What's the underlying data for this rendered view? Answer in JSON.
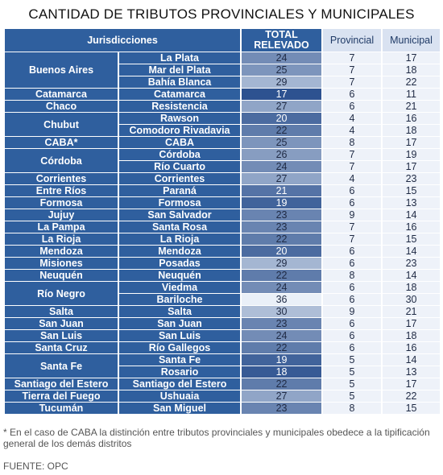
{
  "title": "CANTIDAD DE TRIBUTOS PROVINCIALES Y MUNICIPALES",
  "headers": {
    "jurisdicciones": "Jurisdicciones",
    "total": "TOTAL RELEVADO",
    "provincial": "Provincial",
    "municipal": "Municipal"
  },
  "rows": [
    {
      "province": "Buenos Aires",
      "span": 3,
      "city": "La Plata",
      "total": 24,
      "provincial": 7,
      "municipal": 17
    },
    {
      "city": "Mar del Plata",
      "total": 25,
      "provincial": 7,
      "municipal": 18
    },
    {
      "city": "Bahía Blanca",
      "total": 29,
      "provincial": 7,
      "municipal": 22
    },
    {
      "province": "Catamarca",
      "span": 1,
      "city": "Catamarca",
      "total": 17,
      "provincial": 6,
      "municipal": 11
    },
    {
      "province": "Chaco",
      "span": 1,
      "city": "Resistencia",
      "total": 27,
      "provincial": 6,
      "municipal": 21
    },
    {
      "province": "Chubut",
      "span": 2,
      "city": "Rawson",
      "total": 20,
      "provincial": 4,
      "municipal": 16
    },
    {
      "city": "Comodoro Rivadavia",
      "total": 22,
      "provincial": 4,
      "municipal": 18
    },
    {
      "province": "CABA*",
      "span": 1,
      "city": "CABA",
      "total": 25,
      "provincial": 8,
      "municipal": 17
    },
    {
      "province": "Córdoba",
      "span": 2,
      "city": "Córdoba",
      "total": 26,
      "provincial": 7,
      "municipal": 19
    },
    {
      "city": "Río Cuarto",
      "total": 24,
      "provincial": 7,
      "municipal": 17
    },
    {
      "province": "Corrientes",
      "span": 1,
      "city": "Corrientes",
      "total": 27,
      "provincial": 4,
      "municipal": 23
    },
    {
      "province": "Entre Ríos",
      "span": 1,
      "city": "Paraná",
      "total": 21,
      "provincial": 6,
      "municipal": 15
    },
    {
      "province": "Formosa",
      "span": 1,
      "city": "Formosa",
      "total": 19,
      "provincial": 6,
      "municipal": 13
    },
    {
      "province": "Jujuy",
      "span": 1,
      "city": "San Salvador",
      "total": 23,
      "provincial": 9,
      "municipal": 14
    },
    {
      "province": "La Pampa",
      "span": 1,
      "city": "Santa Rosa",
      "total": 23,
      "provincial": 7,
      "municipal": 16
    },
    {
      "province": "La Rioja",
      "span": 1,
      "city": "La Rioja",
      "total": 22,
      "provincial": 7,
      "municipal": 15
    },
    {
      "province": "Mendoza",
      "span": 1,
      "city": "Mendoza",
      "total": 20,
      "provincial": 6,
      "municipal": 14
    },
    {
      "province": "Misiones",
      "span": 1,
      "city": "Posadas",
      "total": 29,
      "provincial": 6,
      "municipal": 23
    },
    {
      "province": "Neuquén",
      "span": 1,
      "city": "Neuquén",
      "total": 22,
      "provincial": 8,
      "municipal": 14
    },
    {
      "province": "Río Negro",
      "span": 2,
      "city": "Viedma",
      "total": 24,
      "provincial": 6,
      "municipal": 18
    },
    {
      "city": "Bariloche",
      "total": 36,
      "provincial": 6,
      "municipal": 30
    },
    {
      "province": "Salta",
      "span": 1,
      "city": "Salta",
      "total": 30,
      "provincial": 9,
      "municipal": 21
    },
    {
      "province": "San Juan",
      "span": 1,
      "city": "San Juan",
      "total": 23,
      "provincial": 6,
      "municipal": 17
    },
    {
      "province": "San Luis",
      "span": 1,
      "city": "San Luis",
      "total": 24,
      "provincial": 6,
      "municipal": 18
    },
    {
      "province": "Santa Cruz",
      "span": 1,
      "city": "Río Gallegos",
      "total": 22,
      "provincial": 6,
      "municipal": 16
    },
    {
      "province": "Santa Fe",
      "span": 2,
      "city": "Santa Fe",
      "total": 19,
      "provincial": 5,
      "municipal": 14
    },
    {
      "city": "Rosario",
      "total": 18,
      "provincial": 5,
      "municipal": 13
    },
    {
      "province": "Santiago del Estero",
      "span": 1,
      "city": "Santiago del Estero",
      "total": 22,
      "provincial": 5,
      "municipal": 17
    },
    {
      "province": "Tierra del Fuego",
      "span": 1,
      "city": "Ushuaia",
      "total": 27,
      "provincial": 5,
      "municipal": 22
    },
    {
      "province": "Tucumán",
      "span": 1,
      "city": "San Miguel",
      "total": 23,
      "provincial": 8,
      "municipal": 15
    }
  ],
  "footnote": "* En el caso de CABA la distinción entre tributos provinciales y municipales obedece a la tipificación general de los demás distritos",
  "source": "FUENTE: OPC",
  "colors": {
    "header_dark": "#2f5f9e",
    "header_light": "#d9e2f1",
    "total_low": "#2d5290",
    "total_high": "#eaf0f8"
  }
}
